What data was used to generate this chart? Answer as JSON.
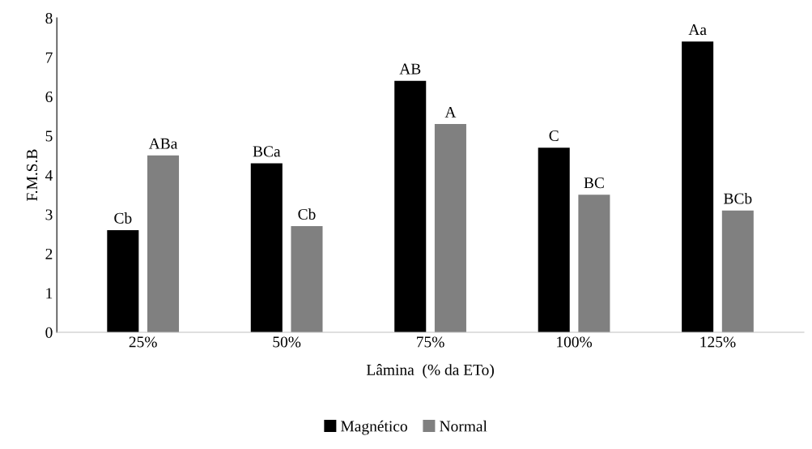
{
  "chart_data": {
    "type": "bar",
    "xlabel": "Lâmina  (% da ETo)",
    "ylabel": "F.M.S.B",
    "categories": [
      "25%",
      "50%",
      "75%",
      "100%",
      "125%"
    ],
    "series": [
      {
        "name": "Magnético",
        "color": "#000000",
        "values": [
          2.6,
          4.3,
          6.4,
          4.7,
          7.4
        ],
        "value_labels": [
          "Cb",
          "BCa",
          "AB",
          "C",
          "Aa"
        ]
      },
      {
        "name": "Normal",
        "color": "#808080",
        "values": [
          4.5,
          2.7,
          5.3,
          3.5,
          3.1
        ],
        "value_labels": [
          "ABa",
          "Cb",
          "A",
          "BC",
          "BCb"
        ]
      }
    ],
    "ylim": [
      0,
      8
    ],
    "yticks": [
      0,
      1,
      2,
      3,
      4,
      5,
      6,
      7,
      8
    ],
    "grid": false,
    "legend": "bottom"
  }
}
